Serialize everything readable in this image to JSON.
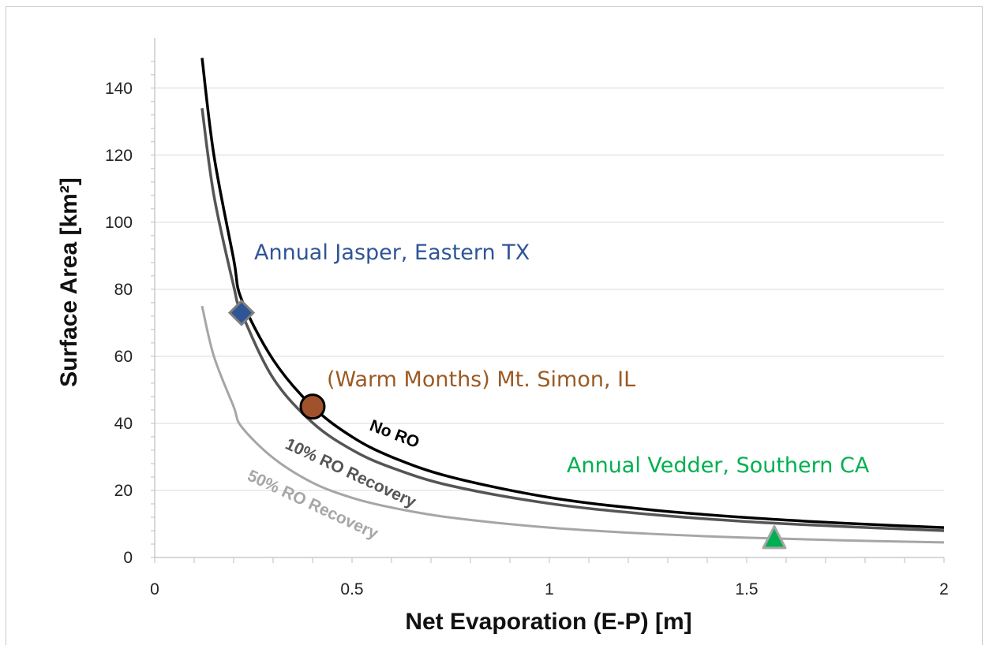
{
  "chart_data": {
    "type": "line",
    "xlabel": "Net Evaporation (E-P) [m]",
    "ylabel": "Surface Area [km²]",
    "xlim": [
      0,
      2
    ],
    "ylim": [
      0,
      155
    ],
    "x_ticks": [
      "0",
      "0.5",
      "1",
      "1.5",
      "2"
    ],
    "y_ticks": [
      "0",
      "20",
      "40",
      "60",
      "80",
      "100",
      "120",
      "140"
    ],
    "x_tick_values": [
      0,
      0.5,
      1,
      1.5,
      2
    ],
    "y_tick_values": [
      0,
      20,
      40,
      60,
      80,
      100,
      120,
      140
    ],
    "grid": "horizontal",
    "series": [
      {
        "name": "No RO",
        "color": "#000000",
        "x": [
          0.12,
          0.15,
          0.2,
          0.22,
          0.3,
          0.4,
          0.5,
          0.6,
          0.75,
          1.0,
          1.25,
          1.5,
          1.75,
          2.0
        ],
        "values": [
          149,
          120,
          89,
          77,
          59,
          45,
          36,
          30,
          24,
          17.9,
          14.3,
          11.9,
          10.2,
          8.9
        ]
      },
      {
        "name": "10% RO Recovery",
        "color": "#555555",
        "x": [
          0.12,
          0.15,
          0.2,
          0.22,
          0.3,
          0.4,
          0.5,
          0.6,
          0.75,
          1.0,
          1.25,
          1.5,
          1.75,
          2.0
        ],
        "values": [
          134,
          108,
          81,
          73,
          53.5,
          40.2,
          32.1,
          26.8,
          21.4,
          16.1,
          12.9,
          10.7,
          9.2,
          8.0
        ]
      },
      {
        "name": "50% RO Recovery",
        "color": "#a6a6a6",
        "x": [
          0.12,
          0.15,
          0.2,
          0.22,
          0.3,
          0.4,
          0.5,
          0.6,
          0.75,
          1.0,
          1.25,
          1.5,
          1.75,
          2.0
        ],
        "values": [
          75,
          60,
          45,
          39,
          29.7,
          22.3,
          17.8,
          14.9,
          11.9,
          8.9,
          7.1,
          5.9,
          5.1,
          4.5
        ]
      }
    ],
    "markers": [
      {
        "label": "Annual Jasper, Eastern TX",
        "x": 0.22,
        "y": 73,
        "shape": "diamond",
        "fill": "#2f5597",
        "text_color": "#2f5597"
      },
      {
        "label": "(Warm Months) Mt. Simon, IL",
        "x": 0.4,
        "y": 45,
        "shape": "circle",
        "fill": "#a0522d",
        "text_color": "#9c5a23"
      },
      {
        "label": "Annual Vedder, Southern CA",
        "x": 1.57,
        "y": 5,
        "shape": "triangle",
        "fill": "#00b050",
        "text_color": "#00b050"
      }
    ]
  }
}
